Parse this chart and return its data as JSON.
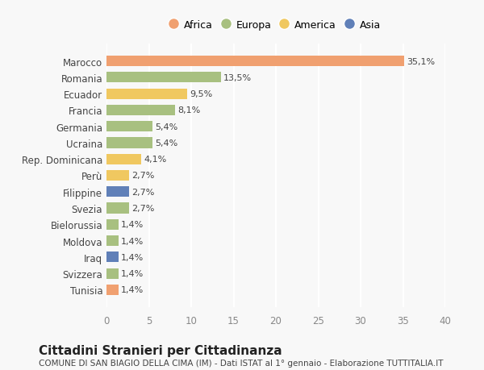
{
  "categories": [
    "Tunisia",
    "Svizzera",
    "Iraq",
    "Moldova",
    "Bielorussia",
    "Svezia",
    "Filippine",
    "Perù",
    "Rep. Dominicana",
    "Ucraina",
    "Germania",
    "Francia",
    "Ecuador",
    "Romania",
    "Marocco"
  ],
  "values": [
    1.4,
    1.4,
    1.4,
    1.4,
    1.4,
    2.7,
    2.7,
    2.7,
    4.1,
    5.4,
    5.4,
    8.1,
    9.5,
    13.5,
    35.1
  ],
  "colors": [
    "#f0a070",
    "#a8c080",
    "#6080b8",
    "#a8c080",
    "#a8c080",
    "#a8c080",
    "#6080b8",
    "#f0c860",
    "#f0c860",
    "#a8c080",
    "#a8c080",
    "#a8c080",
    "#f0c860",
    "#a8c080",
    "#f0a070"
  ],
  "labels": [
    "1,4%",
    "1,4%",
    "1,4%",
    "1,4%",
    "1,4%",
    "2,7%",
    "2,7%",
    "2,7%",
    "4,1%",
    "5,4%",
    "5,4%",
    "8,1%",
    "9,5%",
    "13,5%",
    "35,1%"
  ],
  "legend": [
    {
      "label": "Africa",
      "color": "#f0a070"
    },
    {
      "label": "Europa",
      "color": "#a8c080"
    },
    {
      "label": "America",
      "color": "#f0c860"
    },
    {
      "label": "Asia",
      "color": "#6080b8"
    }
  ],
  "xlim": [
    0,
    40
  ],
  "xticks": [
    0,
    5,
    10,
    15,
    20,
    25,
    30,
    35,
    40
  ],
  "title": "Cittadini Stranieri per Cittadinanza",
  "subtitle": "COMUNE DI SAN BIAGIO DELLA CIMA (IM) - Dati ISTAT al 1° gennaio - Elaborazione TUTTITALIA.IT",
  "background_color": "#f8f8f8",
  "grid_color": "#ffffff",
  "bar_height": 0.65
}
